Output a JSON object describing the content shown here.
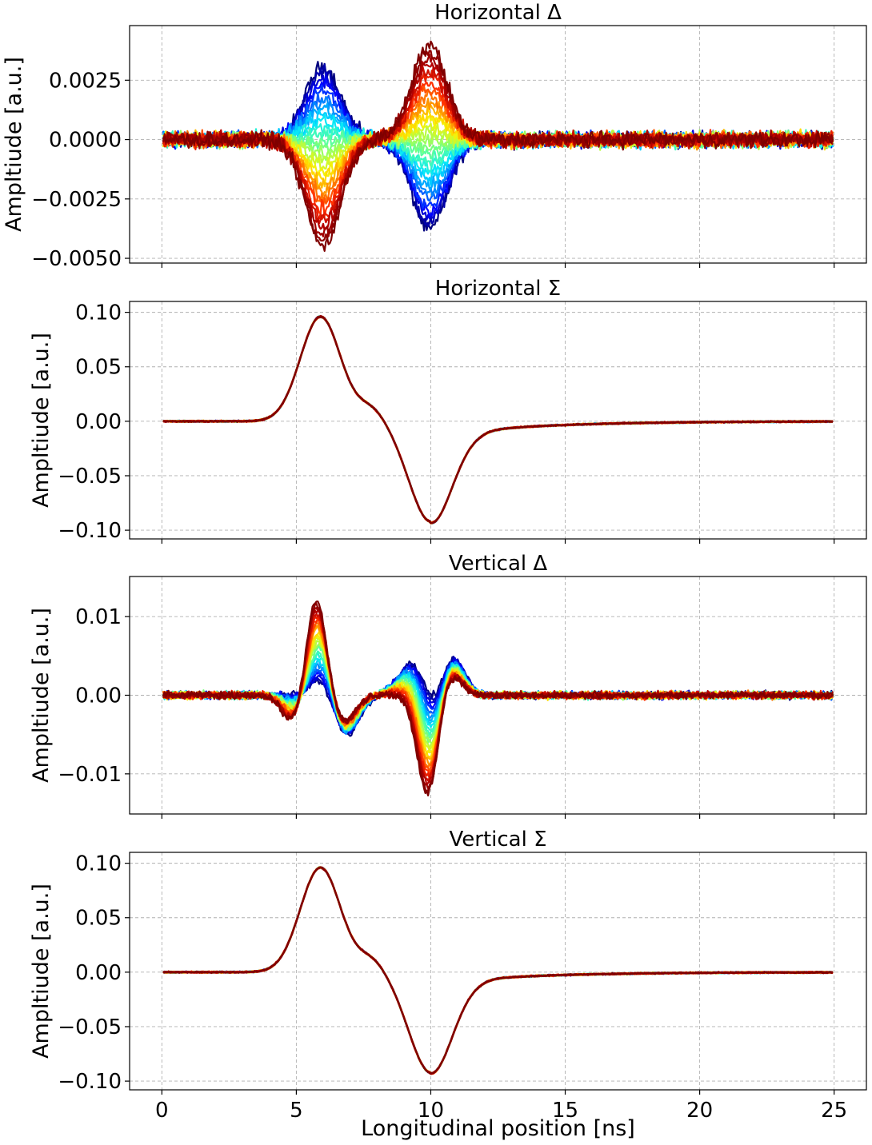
{
  "colormap": [
    "#00007f",
    "#0000ff",
    "#0080ff",
    "#00e5ff",
    "#4dffaa",
    "#aaff4d",
    "#ffef00",
    "#ff8c00",
    "#ff2a00",
    "#b20000",
    "#7f0000"
  ],
  "chart_data": [
    {
      "type": "line",
      "title": "Horizontal Δ",
      "ylabel": "Ampltiude [a.u.]",
      "xlabel": "",
      "xlim": [
        -1.2,
        26.2
      ],
      "ylim": [
        -0.0052,
        0.0048
      ],
      "xticks": [
        0,
        5,
        10,
        15,
        20,
        25
      ],
      "xtick_labels": [],
      "yticks": [
        -0.005,
        -0.0025,
        0.0,
        0.0025
      ],
      "ytick_labels": [
        "−0.0050",
        "−0.0025",
        "0.0000",
        "0.0025"
      ],
      "grid": true,
      "x_range": [
        0.05,
        24.95
      ],
      "n_series": 30,
      "series_colormap": "jet",
      "components": [
        {
          "center": 6.0,
          "sigma": 0.65,
          "amplitude_range": [
            0.0031,
            -0.0045
          ]
        },
        {
          "center": 9.95,
          "sigma": 0.65,
          "amplitude_range": [
            -0.0038,
            0.004
          ]
        }
      ],
      "noise_amplitude": 0.00028
    },
    {
      "type": "line",
      "title": "Horizontal Σ",
      "ylabel": "Ampltiude [a.u.]",
      "xlabel": "",
      "xlim": [
        -1.2,
        26.2
      ],
      "ylim": [
        -0.108,
        0.11
      ],
      "xticks": [
        0,
        5,
        10,
        15,
        20,
        25
      ],
      "xtick_labels": [],
      "yticks": [
        -0.1,
        -0.05,
        0.0,
        0.05,
        0.1
      ],
      "ytick_labels": [
        "−0.10",
        "−0.05",
        "0.00",
        "0.05",
        "0.10"
      ],
      "grid": true,
      "x_range": [
        0.05,
        24.95
      ],
      "n_series": 30,
      "series_colormap": "jet",
      "components": [
        {
          "center": 5.9,
          "sigma": 0.75,
          "amplitude": 0.096
        },
        {
          "center": 7.8,
          "sigma": 0.5,
          "amplitude": 0.012
        },
        {
          "center": 10.0,
          "sigma": 0.8,
          "amplitude": -0.092
        }
      ],
      "tail": {
        "start": 10.0,
        "amplitude": -0.008,
        "decay": 3.5
      },
      "noise_amplitude": 0.0006
    },
    {
      "type": "line",
      "title": "Vertical Δ",
      "ylabel": "Ampltiude [a.u.]",
      "xlabel": "",
      "xlim": [
        -1.2,
        26.2
      ],
      "ylim": [
        -0.0151,
        0.0151
      ],
      "xticks": [
        0,
        5,
        10,
        15,
        20,
        25
      ],
      "xtick_labels": [],
      "yticks": [
        -0.01,
        0.0,
        0.01
      ],
      "ytick_labels": [
        "−0.01",
        "0.00",
        "0.01"
      ],
      "grid": true,
      "x_range": [
        0.05,
        24.95
      ],
      "n_series": 30,
      "series_colormap": "jet",
      "shift_range": [
        0.6,
        -0.6
      ],
      "components": [
        {
          "center": 5.8,
          "sigma": 0.4,
          "amplitude_range": [
            0.002,
            0.0135
          ]
        },
        {
          "center": 5.1,
          "sigma": 0.45,
          "amplitude_range": [
            0.0,
            -0.0045
          ]
        },
        {
          "center": 6.8,
          "sigma": 0.45,
          "amplitude_range": [
            -0.005,
            -0.0035
          ]
        },
        {
          "center": 9.3,
          "sigma": 0.55,
          "amplitude_range": [
            0.0045,
            0.0
          ]
        },
        {
          "center": 10.0,
          "sigma": 0.4,
          "amplitude_range": [
            -0.0035,
            -0.0135
          ]
        },
        {
          "center": 10.7,
          "sigma": 0.45,
          "amplitude_range": [
            0.005,
            0.0035
          ]
        }
      ],
      "noise_amplitude": 0.0004
    },
    {
      "type": "line",
      "title": "Vertical Σ",
      "ylabel": "Ampltiude [a.u.]",
      "xlabel": "Longitudinal position [ns]",
      "xlim": [
        -1.2,
        26.2
      ],
      "ylim": [
        -0.108,
        0.11
      ],
      "xticks": [
        0,
        5,
        10,
        15,
        20,
        25
      ],
      "xtick_labels": [
        "0",
        "5",
        "10",
        "15",
        "20",
        "25"
      ],
      "yticks": [
        -0.1,
        -0.05,
        0.0,
        0.05,
        0.1
      ],
      "ytick_labels": [
        "−0.10",
        "−0.05",
        "0.00",
        "0.05",
        "0.10"
      ],
      "grid": true,
      "x_range": [
        0.05,
        24.95
      ],
      "n_series": 30,
      "series_colormap": "jet",
      "components": [
        {
          "center": 5.9,
          "sigma": 0.75,
          "amplitude": 0.096
        },
        {
          "center": 7.8,
          "sigma": 0.5,
          "amplitude": 0.012
        },
        {
          "center": 10.0,
          "sigma": 0.8,
          "amplitude": -0.092
        }
      ],
      "tail": {
        "start": 10.0,
        "amplitude": -0.006,
        "decay": 3.5
      },
      "noise_amplitude": 0.0006
    }
  ]
}
